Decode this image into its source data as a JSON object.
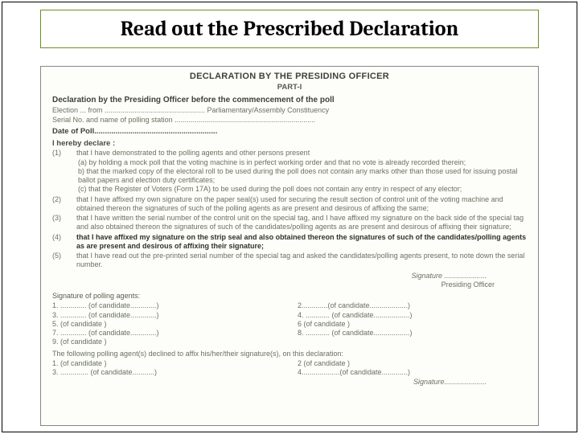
{
  "title": "Read out the Prescribed Declaration",
  "form": {
    "heading": "DECLARATION BY THE PRESIDING OFFICER",
    "part": "PART-I",
    "subhead": "Declaration by the Presiding Officer before the commencement of the poll",
    "line_election": "Election ... from .................................................. Parliamentary/Assembly  Constituency",
    "line_serial": "Serial No. and name of polling station ......................................................................",
    "line_date": "Date of Poll..........................................................",
    "declare": "I hereby declare :",
    "items": [
      {
        "n": "(1)",
        "text": "that I have demonstrated to the polling agents and other persons present",
        "subs": [
          "(a) by holding a mock poll that the voting machine is in perfect working order and that no vote is already recorded therein;",
          "b) that the marked copy of the electoral roll to be used during the poll does not contain any marks other than those used for issuing postal ballot papers and election duty certificates;",
          "(c) that the Register of Voters (Form 17A) to be used during the poll does not contain any entry in respect of any elector;"
        ]
      },
      {
        "n": "(2)",
        "text": "that I have affixed my own signature on the paper seal(s) used for securing the result section of control unit of the voting machine and obtained thereon the signatures of such of the polling agents as are present and desirous of affixing the same;"
      },
      {
        "n": "(3)",
        "text": "that I have written the serial number of the control unit on the special tag, and I have affixed my signature on the back side of the special tag and also obtained thereon the signatures of such of the candidates/polling agents as are present and desirous of affixing their signature;"
      },
      {
        "n": "(4)",
        "bold": true,
        "text": "that I have affixed my signature on the strip seal and also obtained thereon the signatures of such of the candidates/polling agents as are present and desirous of affixing their signature;"
      },
      {
        "n": "(5)",
        "text": "that I have read out the pre-printed serial number of the special tag and asked the candidates/polling agents present, to note down the serial number."
      }
    ],
    "sig1": "Signature .....................",
    "sig2": "Presiding Officer",
    "agents_head": "Signature of polling agents:",
    "agents_left": [
      "1. ............. (of candidate.............)",
      "3. ............. (of candidate.............)",
      "5.              (of candidate             )",
      "7. ............. (of candidate.............)",
      "9.              (of candidate             )"
    ],
    "agents_right": [
      "2.............(of candidate...................)",
      "4. ............ (of candidate..................)",
      "6              (of candidate                  )",
      "8. ............ (of candidate..................)",
      ""
    ],
    "follow": "The following polling agent(s) declined to affix his/her/their signature(s), on this declaration:",
    "decl_left": [
      "1.                  (of candidate          )",
      "3. .............. (of candidate...........)"
    ],
    "decl_right": [
      "2                    (of candidate            )",
      "4...................(of candidate.............)"
    ],
    "sig3": "Signature....................."
  }
}
